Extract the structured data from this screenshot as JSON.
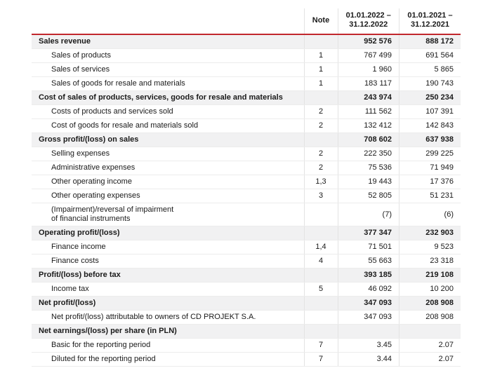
{
  "document_title": "Income statement",
  "colors": {
    "accent_red": "#c1272d",
    "section_row_bg": "#f1f1f2",
    "row_border": "#ececec",
    "column_border": "#e3e3e3",
    "text": "#1a1a1a"
  },
  "table": {
    "header": {
      "label": "",
      "note": "Note",
      "period_2022_line1": "01.01.2022 –",
      "period_2022_line2": "31.12.2022",
      "period_2021_line1": "01.01.2021 –",
      "period_2021_line2": "31.12.2021"
    },
    "rows": [
      {
        "type": "section",
        "label": "Sales revenue",
        "note": "",
        "v2022": "952 576",
        "v2021": "888 172"
      },
      {
        "type": "item",
        "label": "Sales of products",
        "note": "1",
        "v2022": "767 499",
        "v2021": "691 564"
      },
      {
        "type": "item",
        "label": "Sales of services",
        "note": "1",
        "v2022": "1 960",
        "v2021": "5 865"
      },
      {
        "type": "item",
        "label": "Sales of goods for resale and materials",
        "note": "1",
        "v2022": "183 117",
        "v2021": "190 743"
      },
      {
        "type": "section",
        "label": "Cost of sales of products, services, goods for resale and materials",
        "note": "",
        "v2022": "243 974",
        "v2021": "250 234"
      },
      {
        "type": "item",
        "label": "Costs of products and services sold",
        "note": "2",
        "v2022": "111 562",
        "v2021": "107 391"
      },
      {
        "type": "item",
        "label": "Cost of goods for resale and materials sold",
        "note": "2",
        "v2022": "132 412",
        "v2021": "142 843"
      },
      {
        "type": "section",
        "label": "Gross profit/(loss) on sales",
        "note": "",
        "v2022": "708 602",
        "v2021": "637 938"
      },
      {
        "type": "item",
        "label": "Selling expenses",
        "note": "2",
        "v2022": "222 350",
        "v2021": "299 225"
      },
      {
        "type": "item",
        "label": "Administrative expenses",
        "note": "2",
        "v2022": "75 536",
        "v2021": "71 949"
      },
      {
        "type": "item",
        "label": "Other operating income",
        "note": "1,3",
        "v2022": "19 443",
        "v2021": "17 376"
      },
      {
        "type": "item",
        "label": "Other operating expenses",
        "note": "3",
        "v2022": "52 805",
        "v2021": "51 231"
      },
      {
        "type": "item",
        "label": "(Impairment)/reversal of impairment\nof financial instruments",
        "note": "",
        "v2022": "(7)",
        "v2021": "(6)"
      },
      {
        "type": "section",
        "label": "Operating profit/(loss)",
        "note": "",
        "v2022": "377 347",
        "v2021": "232 903"
      },
      {
        "type": "item",
        "label": "Finance income",
        "note": "1,4",
        "v2022": "71 501",
        "v2021": "9 523"
      },
      {
        "type": "item",
        "label": "Finance costs",
        "note": "4",
        "v2022": "55 663",
        "v2021": "23 318"
      },
      {
        "type": "section",
        "label": "Profit/(loss) before tax",
        "note": "",
        "v2022": "393 185",
        "v2021": "219 108"
      },
      {
        "type": "item",
        "label": "Income tax",
        "note": "5",
        "v2022": "46 092",
        "v2021": "10 200"
      },
      {
        "type": "section",
        "label": "Net profit/(loss)",
        "note": "",
        "v2022": "347 093",
        "v2021": "208 908"
      },
      {
        "type": "item",
        "label": "Net profit/(loss) attributable to owners of CD PROJEKT S.A.",
        "note": "",
        "v2022": "347 093",
        "v2021": "208 908"
      },
      {
        "type": "section",
        "label": "Net earnings/(loss) per share (in PLN)",
        "note": "",
        "v2022": "",
        "v2021": ""
      },
      {
        "type": "item",
        "label": "Basic for the reporting period",
        "note": "7",
        "v2022": "3.45",
        "v2021": "2.07"
      },
      {
        "type": "item",
        "label": "Diluted for the reporting period",
        "note": "7",
        "v2022": "3.44",
        "v2021": "2.07"
      }
    ]
  }
}
